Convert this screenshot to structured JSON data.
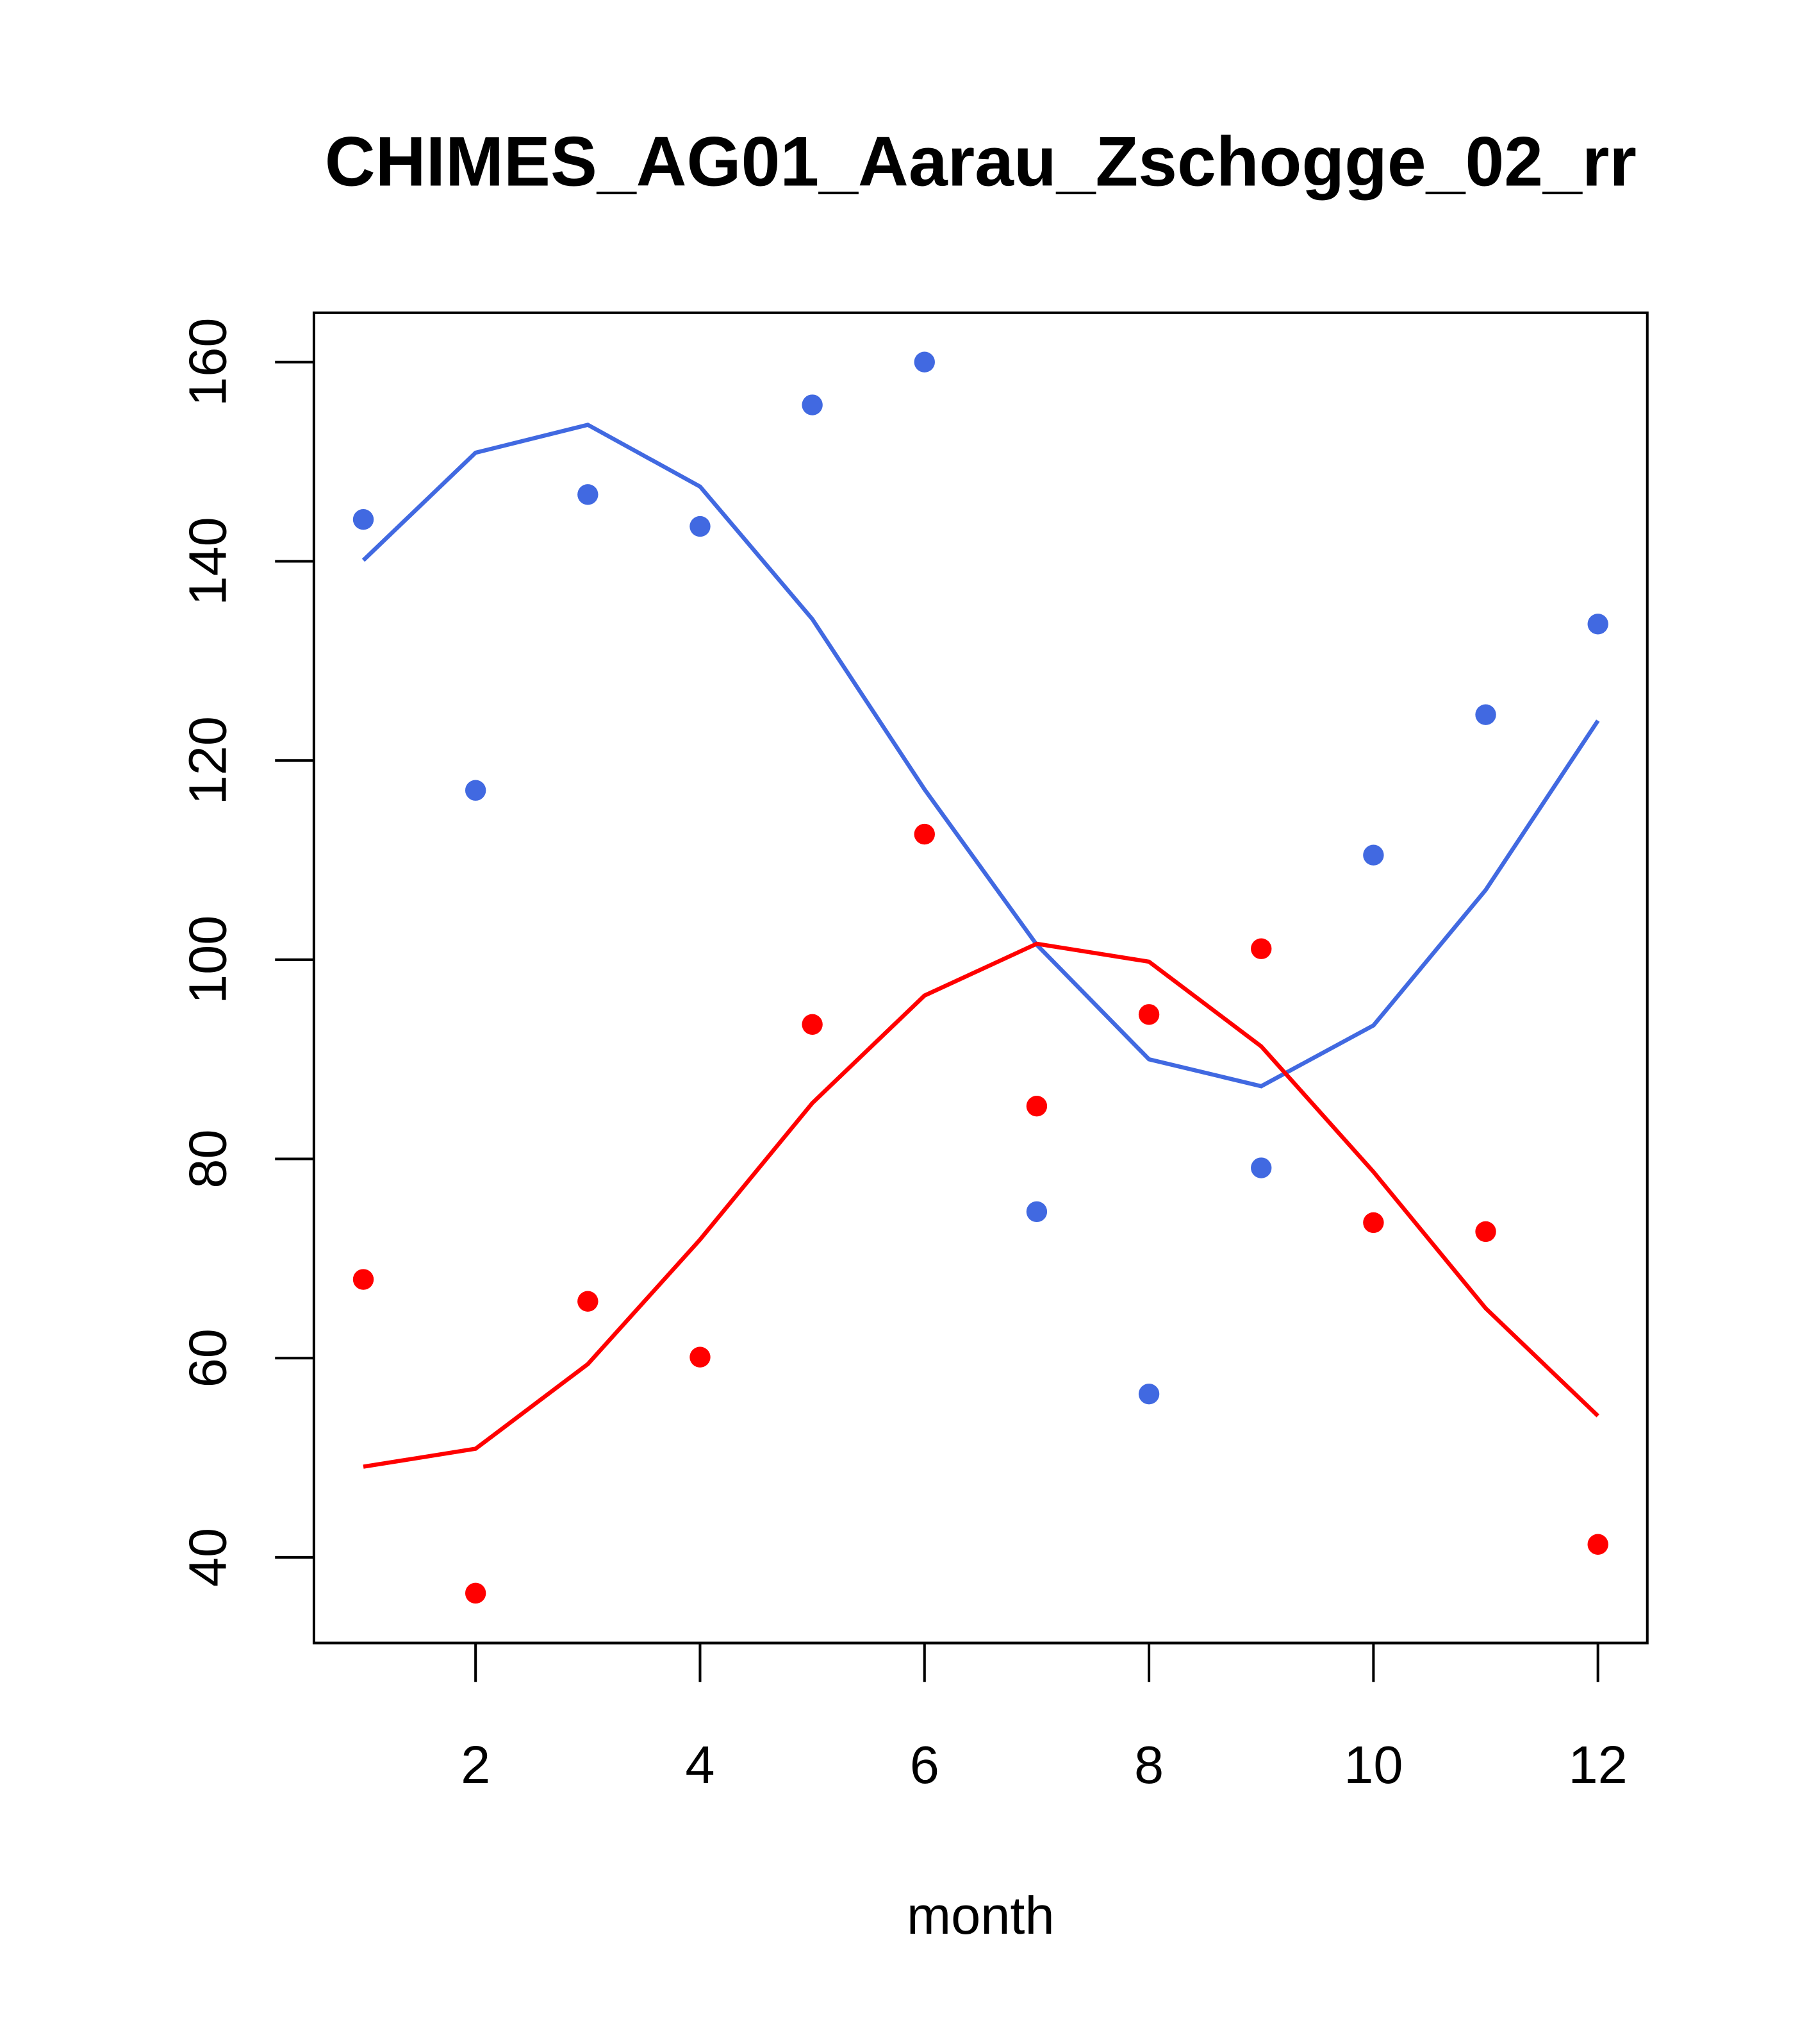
{
  "chart_data": {
    "type": "scatter",
    "title": "CHIMES_AG01_Aarau_Zschogge_02_rr",
    "xlabel": "month",
    "ylabel": "",
    "xlim": [
      0.56,
      12.44
    ],
    "ylim": [
      31.4,
      164.95
    ],
    "xticks": [
      2,
      4,
      6,
      8,
      10,
      12
    ],
    "yticks": [
      40,
      60,
      80,
      100,
      120,
      140,
      160
    ],
    "grid": false,
    "legend": "none",
    "x": [
      1,
      2,
      3,
      4,
      5,
      6,
      7,
      8,
      9,
      10,
      11,
      12
    ],
    "series": [
      {
        "name": "blue points",
        "kind": "points",
        "color": "#4169E1",
        "values": [
          144.2,
          117.0,
          146.7,
          143.5,
          155.7,
          160.0,
          74.7,
          56.4,
          79.1,
          110.5,
          124.6,
          133.7
        ]
      },
      {
        "name": "blue fit",
        "kind": "line",
        "color": "#4169E1",
        "values": [
          140.1,
          150.9,
          153.7,
          147.5,
          134.2,
          117.1,
          101.5,
          90.0,
          87.3,
          93.4,
          107.0,
          124.0
        ]
      },
      {
        "name": "red points",
        "kind": "points",
        "color": "#FF0000",
        "values": [
          67.9,
          36.4,
          65.7,
          60.1,
          93.5,
          112.6,
          85.3,
          94.5,
          101.1,
          73.6,
          72.7,
          41.3
        ]
      },
      {
        "name": "red fit",
        "kind": "line",
        "color": "#FF0000",
        "values": [
          49.1,
          50.9,
          59.4,
          71.9,
          85.6,
          96.4,
          101.6,
          99.8,
          91.3,
          78.7,
          65.0,
          54.2
        ]
      }
    ]
  }
}
